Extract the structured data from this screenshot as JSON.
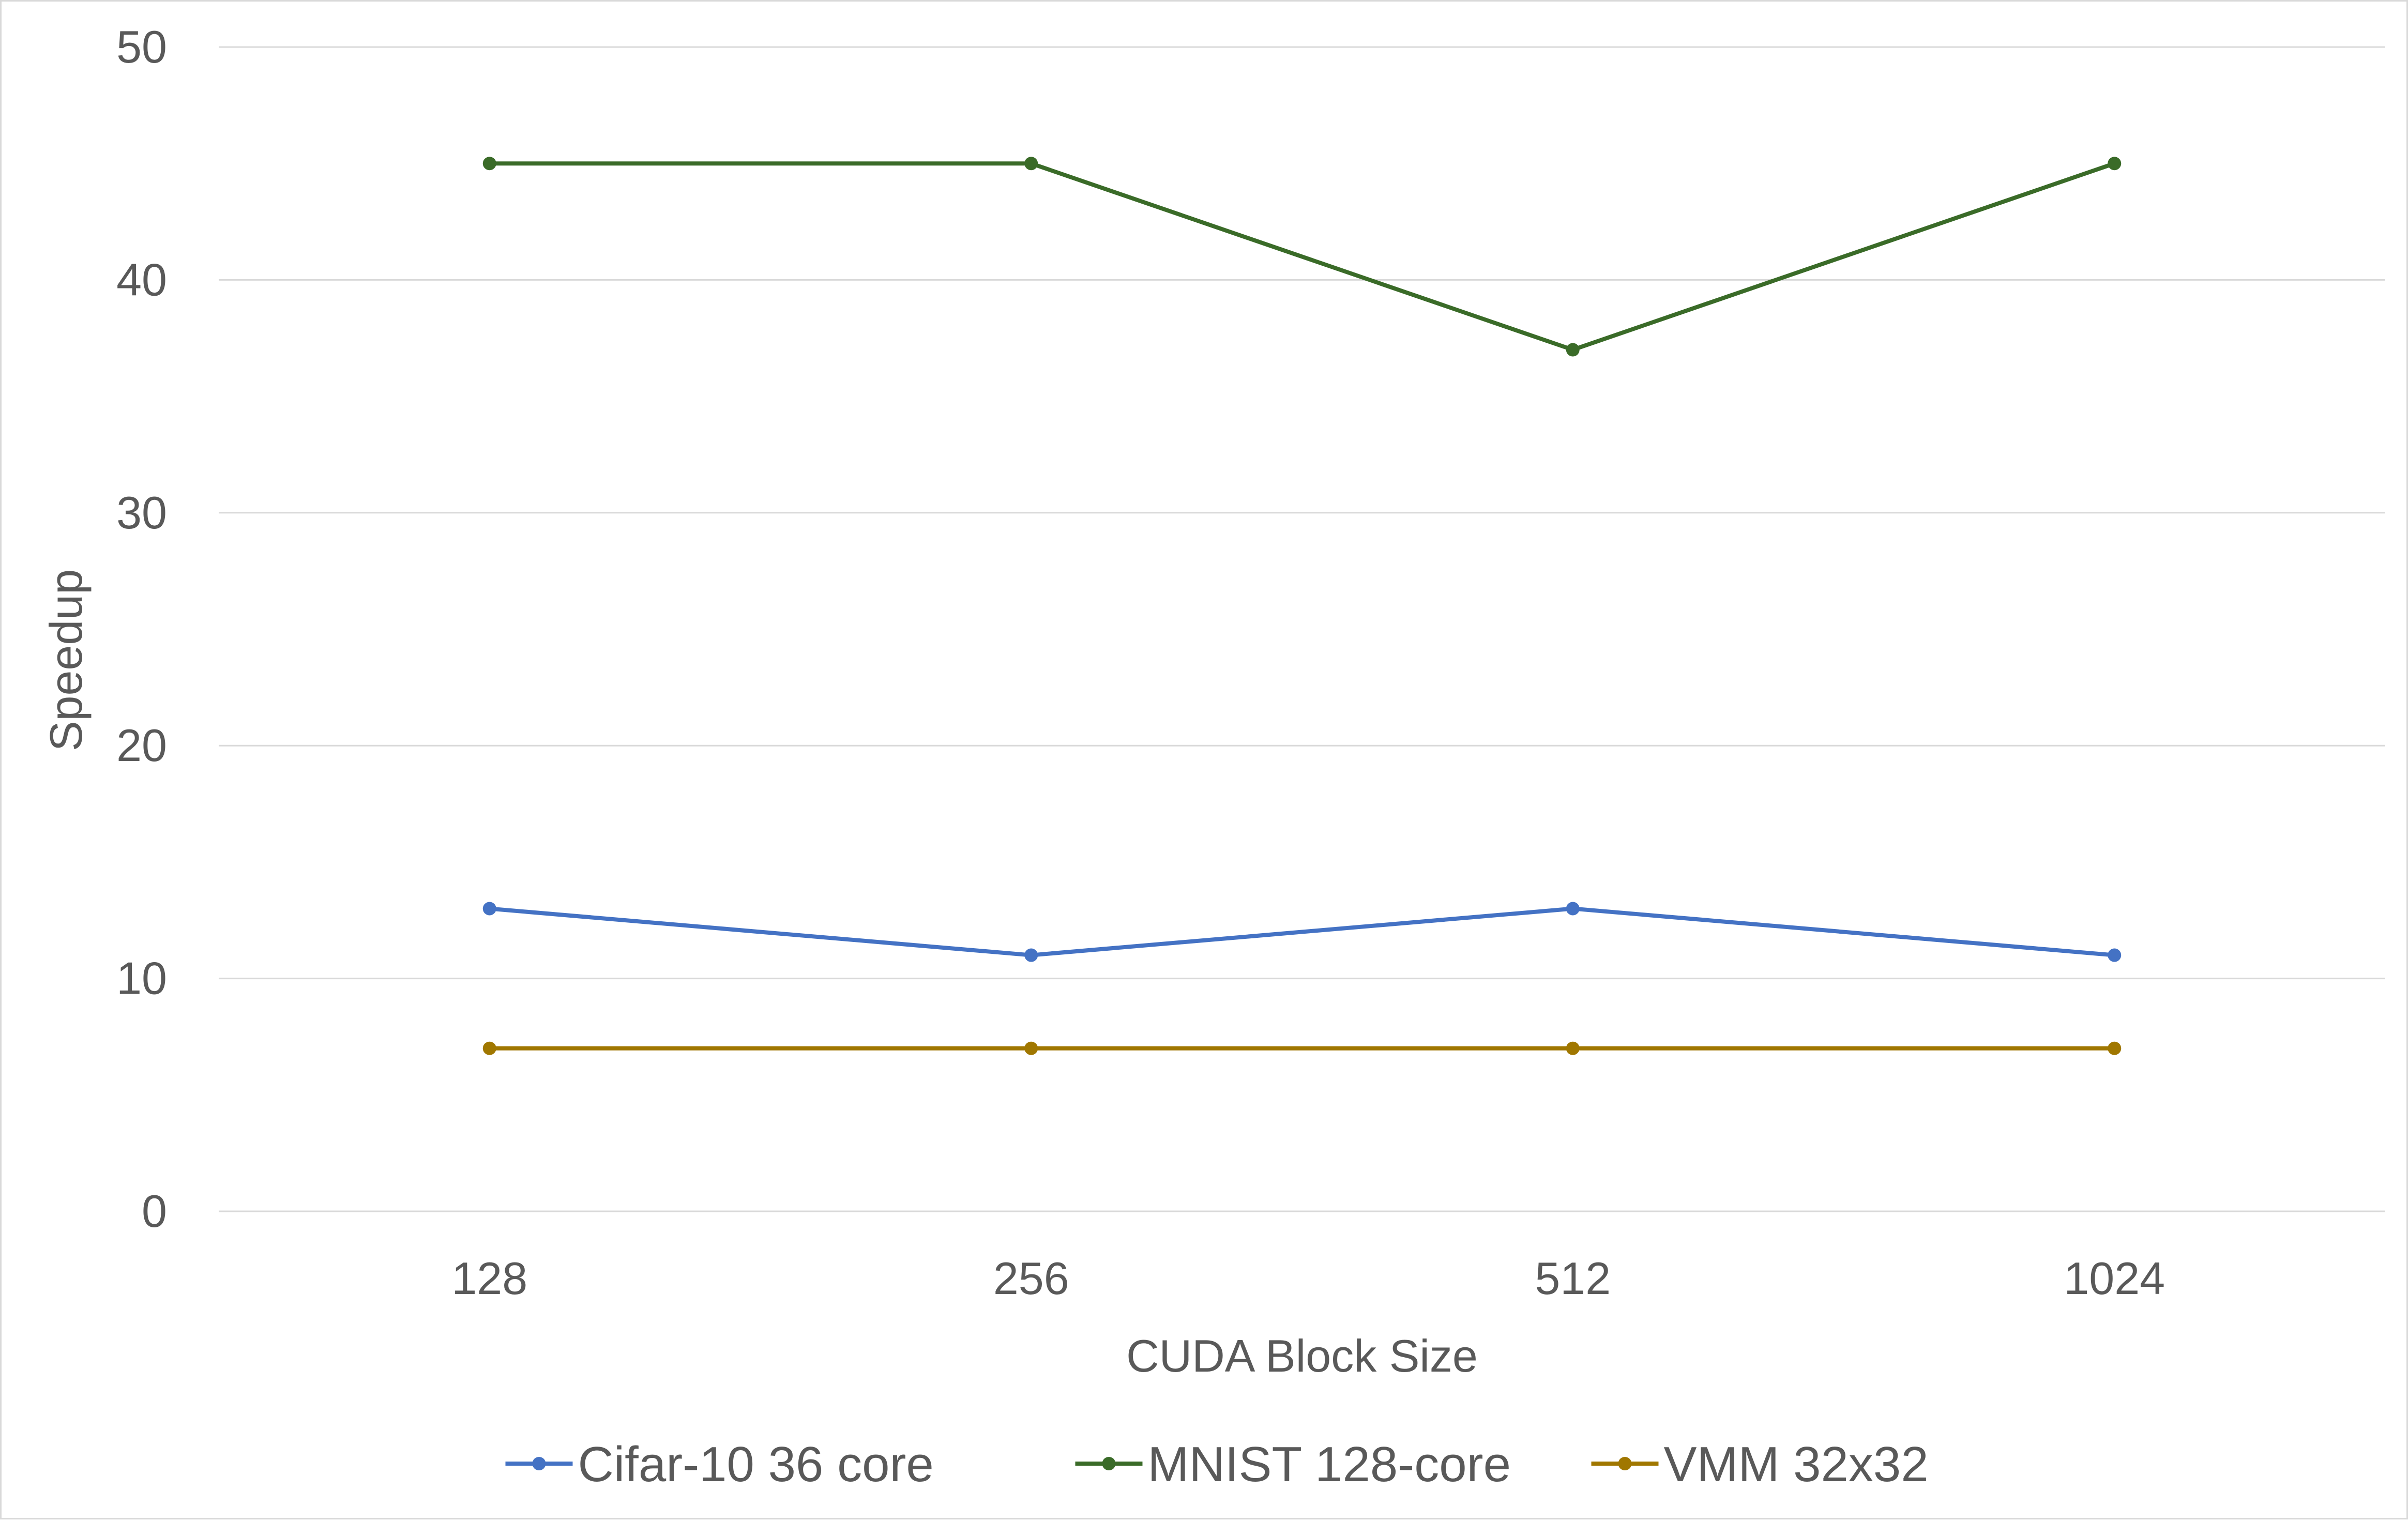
{
  "chart_data": {
    "type": "line",
    "title": "",
    "xlabel": "CUDA Block Size",
    "ylabel": "Speedup",
    "categories": [
      "128",
      "256",
      "512",
      "1024"
    ],
    "ylim": [
      0,
      50
    ],
    "yticks": [
      0,
      10,
      20,
      30,
      40,
      50
    ],
    "grid": true,
    "legend_position": "bottom",
    "series": [
      {
        "name": "Cifar-10 36 core",
        "color": "#4472c4",
        "values": [
          13,
          11,
          13,
          11
        ]
      },
      {
        "name": "MNIST 128-core",
        "color": "#3a6b28",
        "values": [
          45,
          45,
          37,
          45
        ]
      },
      {
        "name": "VMM 32x32",
        "color": "#a07700",
        "values": [
          7,
          7,
          7,
          7
        ]
      }
    ]
  }
}
